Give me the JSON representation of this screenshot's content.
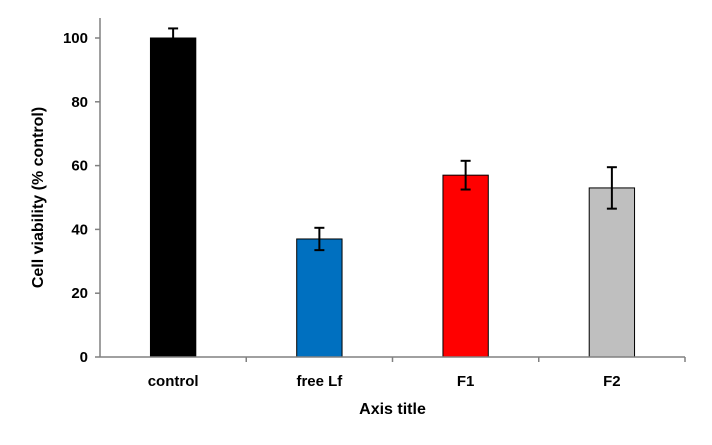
{
  "chart_data": {
    "type": "bar",
    "title": "",
    "xlabel": "Axis title",
    "ylabel": "Cell viability (% control)",
    "categories": [
      "control",
      "free Lf",
      "F1",
      "F2"
    ],
    "values": [
      100,
      37,
      57,
      53
    ],
    "errors": [
      3,
      3.5,
      4.5,
      6.5
    ],
    "colors": [
      "#000000",
      "#0070C0",
      "#FF0000",
      "#BFBFBF"
    ],
    "ylim": [
      0,
      100
    ],
    "yticks": [
      0,
      20,
      40,
      60,
      80,
      100
    ],
    "grid": false,
    "legend": "none"
  }
}
